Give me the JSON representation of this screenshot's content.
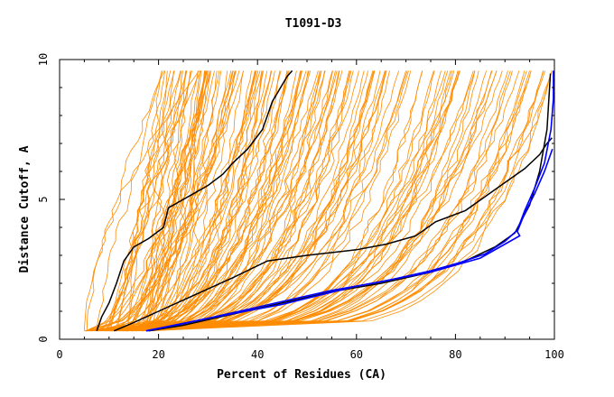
{
  "chart_data": {
    "type": "line",
    "title": "T1091-D3",
    "xlabel": "Percent of Residues (CA)",
    "ylabel": "Distance Cutoff, A",
    "xlim": [
      0,
      100
    ],
    "ylim": [
      0,
      10
    ],
    "x_ticks": [
      "0",
      "20",
      "40",
      "60",
      "80",
      "100"
    ],
    "y_ticks": [
      "0",
      "5",
      "10"
    ],
    "grid": false,
    "legend": "none",
    "colors": {
      "models": "#ff8c00",
      "highlight_black": "#000000",
      "highlight_blue": "#0000ff"
    },
    "series": [
      {
        "style": "black",
        "x": [
          7.5,
          8.5,
          10,
          11.5,
          13,
          15,
          18,
          21,
          22,
          24,
          27,
          30,
          33,
          35,
          38,
          41,
          42,
          43,
          44,
          45,
          46,
          47
        ],
        "y": [
          0.3,
          0.8,
          1.3,
          2.0,
          2.8,
          3.3,
          3.6,
          4.0,
          4.7,
          4.9,
          5.2,
          5.5,
          5.9,
          6.3,
          6.8,
          7.5,
          8.0,
          8.5,
          8.8,
          9.1,
          9.4,
          9.6
        ]
      },
      {
        "style": "black",
        "x": [
          11,
          15,
          20,
          25,
          30,
          35,
          42,
          50,
          60,
          66,
          72,
          76,
          82,
          86,
          90,
          94,
          97,
          98.5,
          99.5
        ],
        "y": [
          0.3,
          0.6,
          1.0,
          1.4,
          1.8,
          2.2,
          2.8,
          3.0,
          3.2,
          3.4,
          3.7,
          4.2,
          4.6,
          5.1,
          5.6,
          6.1,
          6.6,
          7.0,
          7.2
        ]
      },
      {
        "style": "black",
        "x": [
          18,
          25,
          35,
          45,
          55,
          65,
          75,
          82,
          88,
          92,
          95,
          97,
          98.5,
          99.2
        ],
        "y": [
          0.3,
          0.5,
          0.9,
          1.3,
          1.7,
          2.0,
          2.4,
          2.8,
          3.3,
          3.8,
          4.8,
          6.0,
          7.5,
          9.5
        ]
      },
      {
        "style": "blue",
        "x": [
          17.5,
          25,
          35,
          45,
          55,
          65,
          75,
          81,
          86,
          90,
          92.5,
          94,
          96,
          98,
          99.3,
          99.8,
          99.8
        ],
        "y": [
          0.3,
          0.55,
          0.95,
          1.35,
          1.75,
          2.05,
          2.45,
          2.75,
          3.05,
          3.5,
          3.9,
          4.6,
          5.4,
          6.3,
          7.5,
          8.6,
          9.6
        ]
      },
      {
        "style": "blue",
        "x": [
          17.5,
          30,
          45,
          60,
          75,
          85,
          91,
          93,
          92.5,
          94,
          96,
          98,
          99.6
        ],
        "y": [
          0.3,
          0.75,
          1.25,
          1.9,
          2.4,
          2.9,
          3.5,
          3.7,
          3.85,
          4.5,
          5.2,
          6.0,
          6.8
        ]
      }
    ]
  }
}
